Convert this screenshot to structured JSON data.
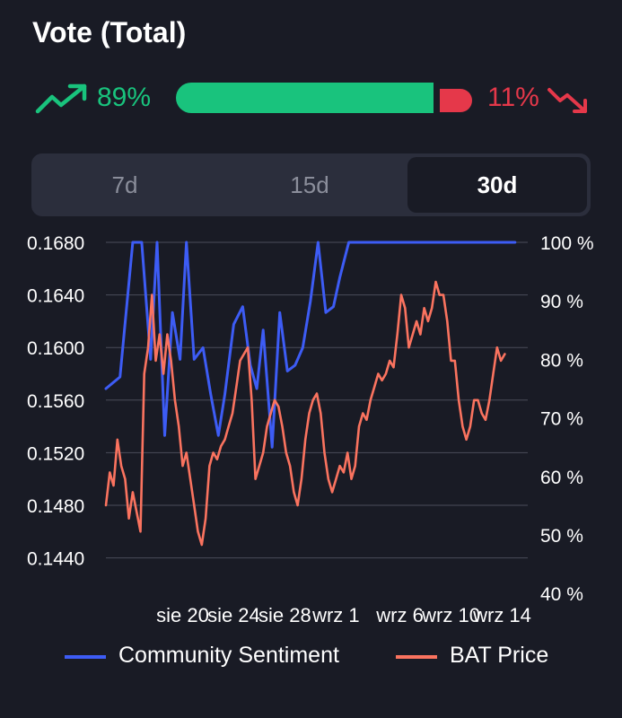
{
  "header": {
    "title": "Vote (Total)"
  },
  "vote": {
    "up_percent_label": "89%",
    "down_percent_label": "11%",
    "up_fraction": 0.89,
    "down_fraction": 0.11,
    "up_color": "#19c37d",
    "down_color": "#e5384a",
    "up_icon": "trending-up-icon",
    "down_icon": "trending-down-icon"
  },
  "tabs": [
    {
      "label": "7d",
      "selected": false
    },
    {
      "label": "15d",
      "selected": false
    },
    {
      "label": "30d",
      "selected": true
    }
  ],
  "chart_data": {
    "type": "line",
    "x_tick_labels": [
      "sie 20",
      "sie 24",
      "sie 28",
      "wrz 1",
      "wrz 6",
      "wrz 10",
      "wrz 14"
    ],
    "x_tick_days": [
      6,
      10,
      14,
      18,
      23,
      27,
      31
    ],
    "x_range_days": [
      0,
      33
    ],
    "y_left": {
      "ticks": [
        "0.1680",
        "0.1640",
        "0.1600",
        "0.1560",
        "0.1520",
        "0.1480",
        "0.1440"
      ],
      "range": [
        0.144,
        0.168
      ]
    },
    "y_right": {
      "ticks": [
        "100 %",
        "90 %",
        "80 %",
        "70 %",
        "60 %",
        "50 %",
        "40 %"
      ],
      "range": [
        40,
        100
      ]
    },
    "grid": true,
    "legend_position": "bottom",
    "series": [
      {
        "name": "Community Sentiment",
        "color": "#3d5cf5",
        "axis": "right",
        "x": [
          0,
          1.1,
          2.1,
          2.8,
          3.5,
          4.0,
          4.6,
          5.2,
          5.8,
          6.3,
          6.9,
          7.6,
          8.2,
          8.8,
          9.3,
          10.0,
          10.7,
          11.3,
          11.8,
          12.3,
          13.0,
          13.6,
          14.2,
          14.8,
          15.4,
          16.0,
          16.6,
          17.2,
          17.8,
          18.3,
          19.0,
          19.6,
          20.3,
          21.0,
          21.5,
          22.2,
          22.8,
          23.4,
          24.0,
          24.6,
          25.3,
          25.9,
          26.4,
          27.0,
          28.0,
          29.0,
          30.0,
          31.0,
          32.0
        ],
        "y": [
          75,
          77,
          100,
          100,
          80,
          100,
          67,
          88,
          80,
          100,
          80,
          82,
          74,
          67,
          74,
          86,
          89,
          79,
          75,
          85,
          65,
          88,
          78,
          79,
          82,
          90,
          100,
          88,
          89,
          94,
          100,
          100,
          100,
          100,
          100,
          100,
          100,
          100,
          100,
          100,
          100,
          100,
          100,
          100,
          100,
          100,
          100,
          100,
          100
        ]
      },
      {
        "name": "BAT Price",
        "color": "#fa735f",
        "axis": "left",
        "x": [
          0.0,
          0.3,
          0.6,
          0.9,
          1.2,
          1.5,
          1.8,
          2.1,
          2.4,
          2.7,
          3.0,
          3.3,
          3.6,
          3.9,
          4.2,
          4.5,
          4.8,
          5.1,
          5.4,
          5.7,
          6.0,
          6.3,
          6.6,
          6.9,
          7.2,
          7.5,
          7.8,
          8.1,
          8.4,
          8.7,
          9.0,
          9.3,
          9.6,
          9.9,
          10.2,
          10.5,
          10.8,
          11.1,
          11.4,
          11.7,
          12.0,
          12.3,
          12.6,
          12.9,
          13.2,
          13.5,
          13.8,
          14.1,
          14.4,
          14.7,
          15.0,
          15.3,
          15.6,
          15.9,
          16.2,
          16.5,
          16.8,
          17.1,
          17.4,
          17.7,
          18.0,
          18.3,
          18.6,
          18.9,
          19.2,
          19.5,
          19.8,
          20.1,
          20.4,
          20.7,
          21.0,
          21.3,
          21.6,
          21.9,
          22.2,
          22.5,
          22.8,
          23.1,
          23.4,
          23.7,
          24.0,
          24.3,
          24.6,
          24.9,
          25.2,
          25.5,
          25.8,
          26.1,
          26.4,
          26.7,
          27.0,
          27.3,
          27.6,
          27.9,
          28.2,
          28.5,
          28.8,
          29.1,
          29.4,
          29.7,
          30.0,
          30.3,
          30.6,
          30.9,
          31.2
        ],
        "y": [
          0.148,
          0.1505,
          0.1495,
          0.153,
          0.151,
          0.15,
          0.147,
          0.149,
          0.1475,
          0.146,
          0.158,
          0.16,
          0.164,
          0.159,
          0.161,
          0.158,
          0.161,
          0.159,
          0.156,
          0.154,
          0.151,
          0.152,
          0.15,
          0.148,
          0.146,
          0.145,
          0.147,
          0.151,
          0.152,
          0.1515,
          0.1525,
          0.153,
          0.154,
          0.155,
          0.157,
          0.159,
          0.1595,
          0.16,
          0.156,
          0.15,
          0.151,
          0.152,
          0.154,
          0.155,
          0.156,
          0.1555,
          0.154,
          0.152,
          0.151,
          0.149,
          0.148,
          0.15,
          0.153,
          0.155,
          0.156,
          0.1565,
          0.155,
          0.152,
          0.15,
          0.149,
          0.15,
          0.151,
          0.1505,
          0.152,
          0.15,
          0.151,
          0.154,
          0.155,
          0.1545,
          0.156,
          0.157,
          0.158,
          0.1575,
          0.158,
          0.159,
          0.1585,
          0.161,
          0.164,
          0.163,
          0.16,
          0.161,
          0.162,
          0.161,
          0.163,
          0.162,
          0.163,
          0.165,
          0.164,
          0.164,
          0.162,
          0.159,
          0.159,
          0.156,
          0.154,
          0.153,
          0.154,
          0.156,
          0.156,
          0.155,
          0.1545,
          0.156,
          0.158,
          0.16,
          0.159,
          0.1595
        ]
      }
    ]
  }
}
